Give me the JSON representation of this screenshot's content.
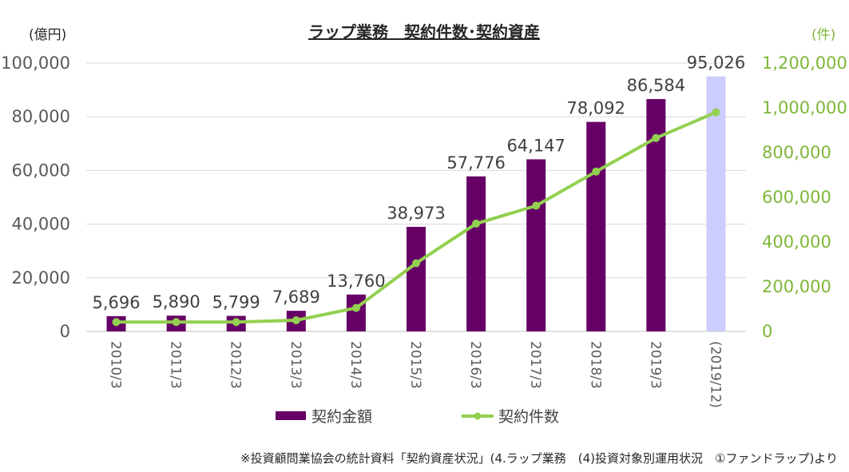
{
  "chart_data": {
    "type": "bar+line",
    "title": "ラップ業務　契約件数･契約資産",
    "y_left_unit": "(億円)",
    "y_right_unit": "(件)",
    "categories": [
      "2010/3",
      "2011/3",
      "2012/3",
      "2013/3",
      "2014/3",
      "2015/3",
      "2016/3",
      "2017/3",
      "2018/3",
      "2019/3",
      "(2019/12)"
    ],
    "y_left_ticks": [
      "0",
      "20,000",
      "40,000",
      "60,000",
      "80,000",
      "100,000"
    ],
    "y_right_ticks": [
      "0",
      "200,000",
      "400,000",
      "600,000",
      "800,000",
      "1,000,000",
      "1,200,000"
    ],
    "ylim_left": [
      0,
      100000
    ],
    "ylim_right": [
      0,
      1200000
    ],
    "series": [
      {
        "name": "契約金額",
        "type": "bar",
        "axis": "left",
        "values": [
          5696,
          5890,
          5799,
          7689,
          13760,
          38973,
          57776,
          64147,
          78092,
          86584,
          95026
        ],
        "labels": [
          "5,696",
          "5,890",
          "5,799",
          "7,689",
          "13,760",
          "38,973",
          "57,776",
          "64,147",
          "78,092",
          "86,584",
          "95,026"
        ],
        "color": "#660066",
        "highlight_last_color": "#ccccff"
      },
      {
        "name": "契約件数",
        "type": "line",
        "axis": "right",
        "values": [
          42000,
          42000,
          42000,
          50000,
          105000,
          305000,
          482000,
          562000,
          715000,
          865000,
          980000
        ],
        "color": "#92d050"
      }
    ],
    "legend_position": "bottom",
    "grid": "horizontal"
  },
  "colors": {
    "axis_left": "#595959",
    "axis_right": "#7fb638",
    "grid": "#d9d9d9"
  },
  "note": "※投資顧問業協会の統計資料「契約資産状況」(4.ラップ業務　(4)投資対象別運用状況　①ファンドラップ)より"
}
